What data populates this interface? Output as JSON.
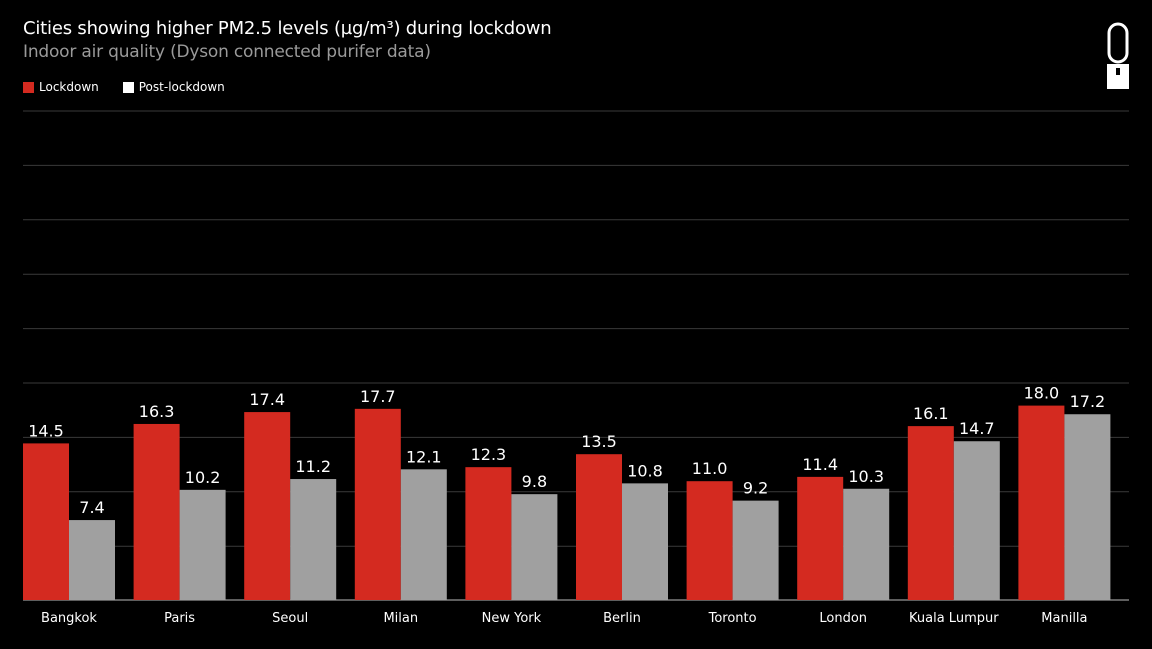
{
  "chart_data": {
    "type": "bar",
    "title": "Cities showing higher PM2.5 levels (µg/m³) during lockdown",
    "subtitle": "Indoor air quality (Dyson connected purifer data)",
    "categories": [
      "Bangkok",
      "Paris",
      "Seoul",
      "Milan",
      "New York",
      "Berlin",
      "Toronto",
      "London",
      "Kuala Lumpur",
      "Manilla"
    ],
    "series": [
      {
        "name": "Lockdown",
        "color": "#d42a20",
        "values": [
          14.5,
          16.3,
          17.4,
          17.7,
          12.3,
          13.5,
          11.0,
          11.4,
          16.1,
          18.0
        ]
      },
      {
        "name": "Post-lockdown",
        "color": "#a0a0a0",
        "values": [
          7.4,
          10.2,
          11.2,
          12.1,
          9.8,
          10.8,
          9.2,
          10.3,
          14.7,
          17.2
        ]
      }
    ],
    "data_labels": [
      [
        "14.5",
        "16.3",
        "17.4",
        "17.7",
        "12.3",
        "13.5",
        "11.0",
        "11.4",
        "16.1",
        "18.0"
      ],
      [
        "7.4",
        "10.2",
        "11.2",
        "12.1",
        "9.8",
        "10.8",
        "9.2",
        "10.3",
        "14.7",
        "17.2"
      ]
    ],
    "legend_position": "top-left",
    "legend_swatch_colors": [
      "#d42a20",
      "#ffffff"
    ],
    "grid": true,
    "y_axis_visible": false
  },
  "brand": {
    "logo_icon": "dyson-purifier-icon"
  }
}
